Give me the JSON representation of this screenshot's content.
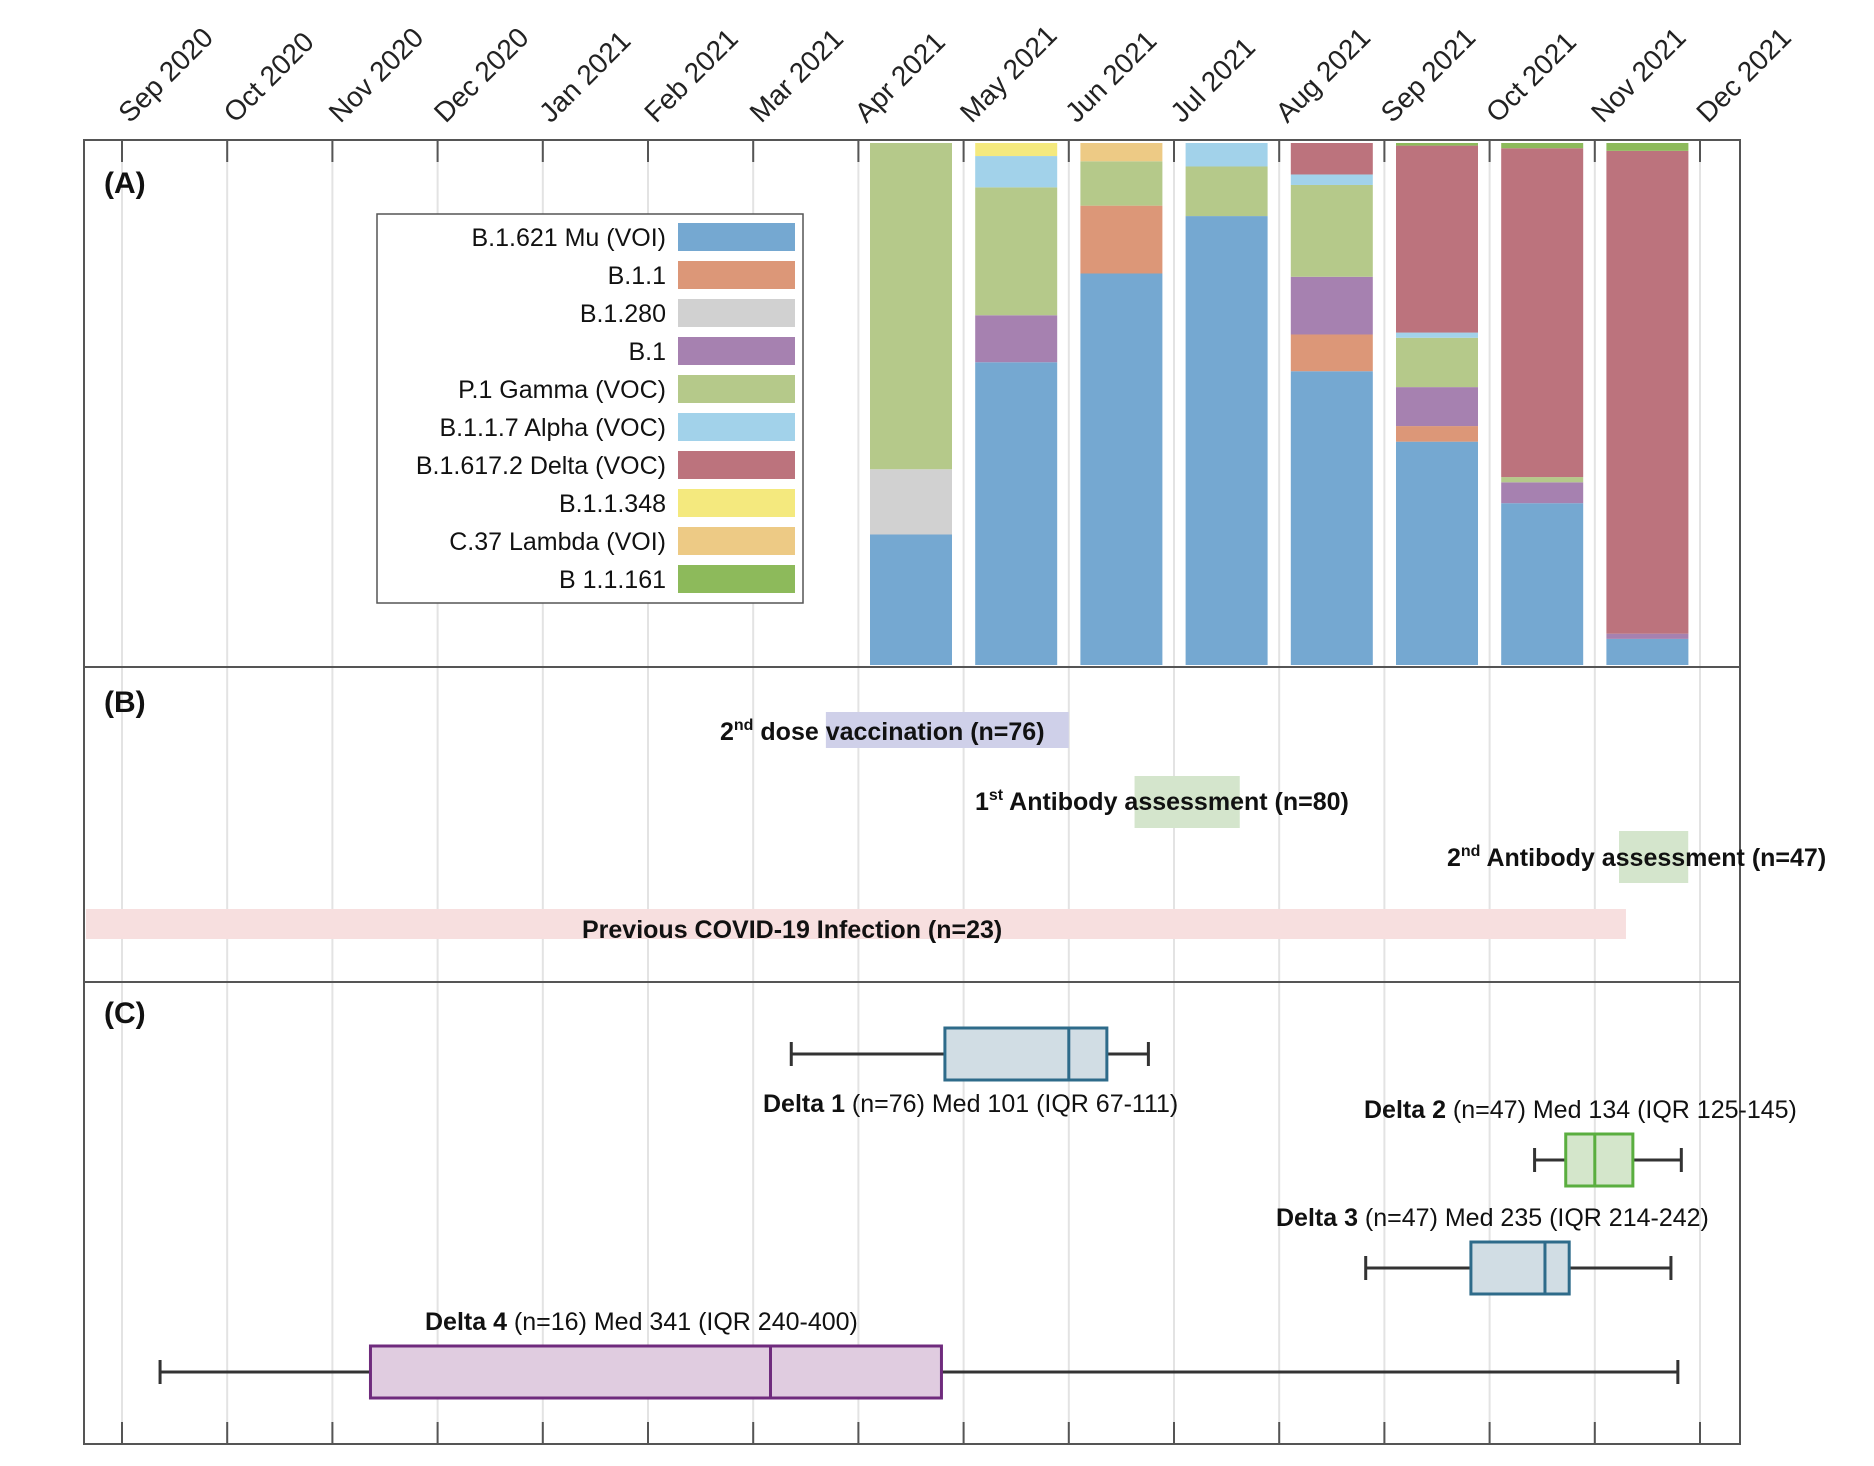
{
  "chart_data": [
    {
      "panel": "(A)",
      "type": "bar",
      "stacked": true,
      "normalized": true,
      "x_axis_ticks": [
        "Sep 2020",
        "Oct 2020",
        "Nov 2020",
        "Dec 2020",
        "Jan 2021",
        "Feb 2021",
        "Mar 2021",
        "Apr 2021",
        "May 2021",
        "Jun 2021",
        "Jul 2021",
        "Aug 2021",
        "Sep 2021",
        "Oct 2021",
        "Nov 2021",
        "Dec 2021"
      ],
      "categories": [
        "Apr 2021",
        "May 2021",
        "Jun 2021",
        "Jul 2021",
        "Aug 2021",
        "Sep 2021",
        "Oct 2021",
        "Nov 2021"
      ],
      "ylim": [
        0,
        100
      ],
      "legend_position": "upper-left",
      "grid": true,
      "series": [
        {
          "name": "B.1.621 Mu (VOI)",
          "color": "#75a8d1",
          "values": [
            25,
            58,
            75,
            86,
            56,
            43,
            31,
            5
          ]
        },
        {
          "name": "B.1.1",
          "color": "#dc9778",
          "values": [
            0,
            0,
            13,
            0,
            7,
            3,
            0,
            0
          ]
        },
        {
          "name": "B.1.280",
          "color": "#d1d1d1",
          "values": [
            12.5,
            0,
            0,
            0,
            0,
            0,
            0,
            0
          ]
        },
        {
          "name": "B.1",
          "color": "#a681b0",
          "values": [
            0,
            9,
            0,
            0,
            11,
            7.5,
            4,
            1
          ]
        },
        {
          "name": "P.1 Gamma (VOC)",
          "color": "#b5c98a",
          "values": [
            62.5,
            24.5,
            8.5,
            9.5,
            17.5,
            9.5,
            1,
            0
          ]
        },
        {
          "name": "B.1.1.7 Alpha (VOC)",
          "color": "#a2d2ea",
          "values": [
            0,
            6,
            0,
            4.5,
            2,
            1,
            0,
            0
          ]
        },
        {
          "name": "B.1.617.2 Delta (VOC)",
          "color": "#bc737d",
          "values": [
            0,
            0,
            0,
            0,
            6,
            36,
            63,
            92.5
          ]
        },
        {
          "name": "B.1.1.348",
          "color": "#f4e97e",
          "values": [
            0,
            2.5,
            0,
            0,
            0,
            0,
            0,
            0
          ]
        },
        {
          "name": "C.37 Lambda (VOI)",
          "color": "#edca85",
          "values": [
            0,
            0,
            3.5,
            0,
            0,
            0,
            0,
            0
          ]
        },
        {
          "name": "B 1.1.161",
          "color": "#8dba5b",
          "values": [
            0,
            0,
            0,
            0,
            0,
            0.5,
            1,
            1.5
          ]
        }
      ]
    },
    {
      "panel": "(B)",
      "type": "timeline",
      "events": [
        {
          "label_pre": "2",
          "label_sup": "nd",
          "label_main": " dose vaccination (n=76)",
          "start": "2021-03-22",
          "end": "2021-06-01",
          "color": "#cfd0e9"
        },
        {
          "label_pre": "1",
          "label_sup": "st",
          "label_main": " Antibody assessment (n=80)",
          "start": "2021-06-20",
          "end": "2021-07-20",
          "color": "#d4e5cc"
        },
        {
          "label_pre": "2",
          "label_sup": "nd",
          "label_main": " Antibody assessment (n=47)",
          "start": "2021-11-08",
          "end": "2021-11-28",
          "color": "#d4e5cc"
        },
        {
          "label_pre": "",
          "label_sup": "",
          "label_main": "Previous COVID-19 Infection (n=23)",
          "start": "2020-08-20",
          "end": "2021-11-10",
          "color": "#f7dfdf"
        }
      ]
    },
    {
      "panel": "(C)",
      "type": "boxplot",
      "boxes": [
        {
          "name": "Delta 1",
          "info": " (n=76) Med 101 (IQR 67-111)",
          "min": "2021-03-12",
          "q1": "2021-04-26",
          "median": "2021-06-01",
          "q3": "2021-06-12",
          "max": "2021-06-24",
          "stroke": "#2e6b8a",
          "fill": "#d1dde4"
        },
        {
          "name": "Delta 2",
          "info": " (n=47) Med 134 (IQR 125-145)",
          "min": "2021-10-14",
          "q1": "2021-10-23",
          "median": "2021-11-01",
          "q3": "2021-11-12",
          "max": "2021-11-26",
          "stroke": "#5aae3f",
          "fill": "#d4e6cb"
        },
        {
          "name": "Delta 3",
          "info": " (n=47) Med 235 (IQR 214-242)",
          "min": "2021-08-26",
          "q1": "2021-09-26",
          "median": "2021-10-17",
          "q3": "2021-10-24",
          "max": "2021-11-23",
          "stroke": "#2e6b8a",
          "fill": "#d1dde4"
        },
        {
          "name": "Delta 4",
          "info": " (n=16) Med 341 (IQR 240-400)",
          "min": "2020-09-12",
          "q1": "2020-11-12",
          "median": "2021-03-06",
          "q3": "2021-04-25",
          "max": "2021-11-25",
          "stroke": "#6f2b7d",
          "fill": "#e0cce0"
        }
      ]
    }
  ],
  "panel_labels": {
    "a": "(A)",
    "b": "(B)",
    "c": "(C)"
  }
}
